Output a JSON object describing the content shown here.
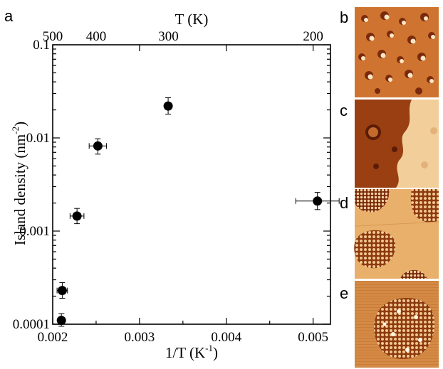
{
  "panel_labels": {
    "a": "a",
    "b": "b",
    "c": "c",
    "d": "d",
    "e": "e"
  },
  "chart_data": {
    "type": "scatter",
    "title": "",
    "xlabel": "1/T (K-1)",
    "xlabel_parts": {
      "base": "1/T (K",
      "sup": "-1",
      "tail": ")"
    },
    "ylabel": "Island density (nm-2)",
    "ylabel_parts": {
      "base": "Island density (nm",
      "sup": "-2",
      "tail": ")"
    },
    "top_xlabel": "T (K)",
    "xlim": [
      0.002,
      0.0052
    ],
    "ylim": [
      0.0001,
      0.1
    ],
    "y_scale": "log",
    "x_ticks": [
      "0.002",
      "0.003",
      "0.004",
      "0.005"
    ],
    "y_ticks": [
      "0.0001",
      "0.001",
      "0.01",
      "0.1"
    ],
    "top_ticks": [
      {
        "label": "500",
        "T": 500
      },
      {
        "label": "400",
        "T": 400
      },
      {
        "label": "300",
        "T": 300
      },
      {
        "label": "200",
        "T": 200
      }
    ],
    "points": [
      {
        "x": 0.0021,
        "y": 0.00011,
        "xerr": 0.0,
        "ylo": 9.5e-05,
        "yhi": 0.00013
      },
      {
        "x": 0.00211,
        "y": 0.00023,
        "xerr": 6e-05,
        "ylo": 0.00019,
        "yhi": 0.00028
      },
      {
        "x": 0.00228,
        "y": 0.00145,
        "xerr": 8e-05,
        "ylo": 0.0012,
        "yhi": 0.00175
      },
      {
        "x": 0.00252,
        "y": 0.0082,
        "xerr": 0.0001,
        "ylo": 0.0067,
        "yhi": 0.0098
      },
      {
        "x": 0.00333,
        "y": 0.022,
        "xerr": 0.0,
        "ylo": 0.018,
        "yhi": 0.027
      },
      {
        "x": 0.00505,
        "y": 0.0021,
        "xerr": 0.00025,
        "ylo": 0.0017,
        "yhi": 0.0026
      }
    ],
    "grid": false,
    "legend": "none"
  },
  "colors": {
    "marker": "#000000",
    "stm_orange": "#c8611d",
    "stm_bright": "#f6d7a6",
    "stm_dark": "#7a2a0c",
    "stm_terrace": "#dc8f4b"
  }
}
